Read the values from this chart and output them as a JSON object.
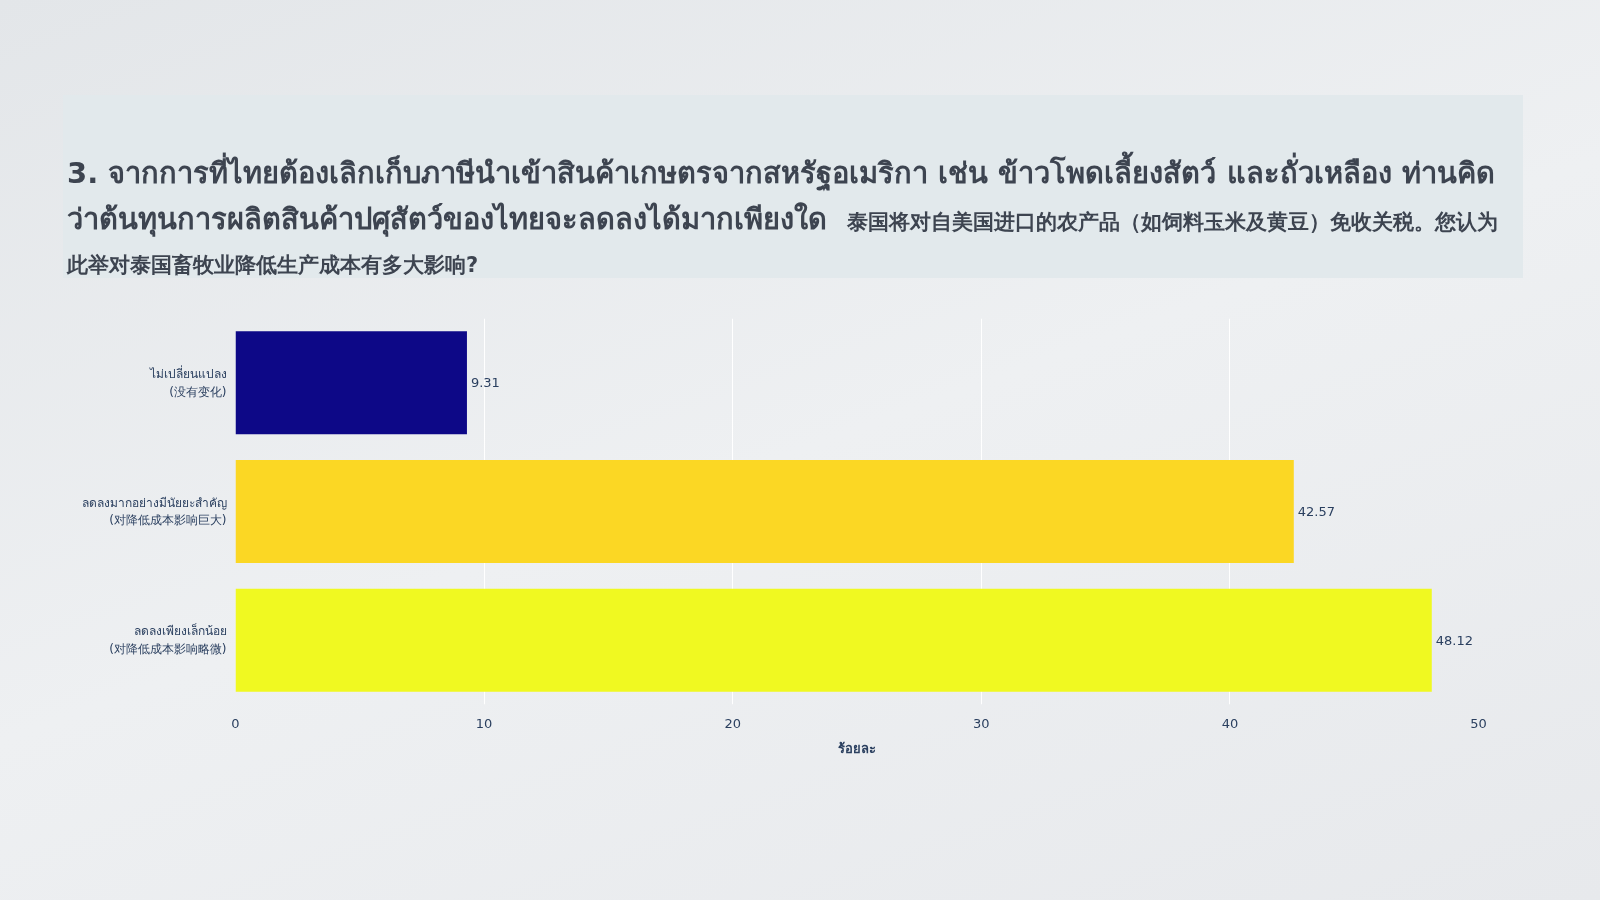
{
  "chart_data": {
    "type": "bar",
    "orientation": "horizontal",
    "title": "3. จากการที่ไทยต้องเลิกเก็บภาษีนำเข้าสินค้าเกษตรจากสหรัฐอเมริกา เช่น ข้าวโพดเลี้ยงสัตว์ และถั่วเหลือง ท่านคิดว่าต้นทุนการผลิตสินค้าปศุสัตว์ของไทยจะลดลงได้มากเพียงใด",
    "subtitle": "泰国将对自美国进口的农产品（如饲料玉米及黄豆）免收关税。您认为此举对泰国畜牧业降低生产成本有多大影响?",
    "xlabel": "ร้อยละ",
    "categories": [
      "ไม่เปลี่ยนแปลง\n(没有变化)",
      "ลดลงมากอย่างมีนัยยะสำคัญ\n(对降低成本影响巨大)",
      "ลดลงเพียงเล็กน้อย\n(对降低成本影响略微)"
    ],
    "values": [
      9.31,
      42.57,
      48.12
    ],
    "colors": [
      "#0d0887",
      "#fbd724",
      "#f0f921"
    ],
    "xlim": [
      0,
      50
    ],
    "xticks": [
      0,
      10,
      20,
      30,
      40,
      50
    ],
    "grid": "x",
    "data_labels": true
  }
}
